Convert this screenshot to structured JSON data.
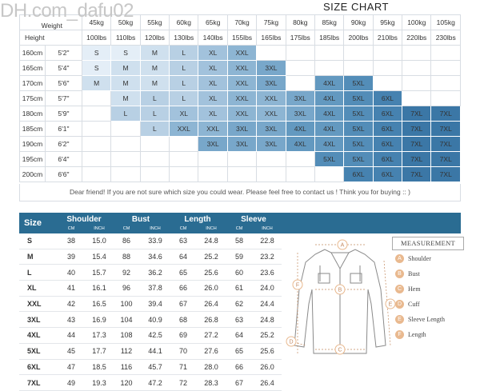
{
  "watermark": "DH.com_dafu02",
  "size_chart": {
    "title": "SIZE CHART",
    "weight_label": "Weight",
    "height_label": "Height",
    "weights_kg": [
      "45kg",
      "50kg",
      "55kg",
      "60kg",
      "65kg",
      "70kg",
      "75kg",
      "80kg",
      "85kg",
      "90kg",
      "95kg",
      "100kg",
      "105kg"
    ],
    "weights_lbs": [
      "100lbs",
      "110lbs",
      "120lbs",
      "130lbs",
      "140lbs",
      "155lbs",
      "165lbs",
      "175lbs",
      "185lbs",
      "200lbs",
      "210lbs",
      "220lbs",
      "230lbs"
    ],
    "rows": [
      {
        "cm": "160cm",
        "ft": "5'2\"",
        "cells": [
          "S",
          "S",
          "M",
          "L",
          "XL",
          "XXL",
          "",
          "",
          "",
          "",
          "",
          "",
          ""
        ]
      },
      {
        "cm": "165cm",
        "ft": "5'4\"",
        "cells": [
          "S",
          "M",
          "M",
          "L",
          "XL",
          "XXL",
          "3XL",
          "",
          "",
          "",
          "",
          "",
          ""
        ]
      },
      {
        "cm": "170cm",
        "ft": "5'6\"",
        "cells": [
          "M",
          "M",
          "M",
          "L",
          "XL",
          "XXL",
          "3XL",
          "",
          "4XL",
          "5XL",
          "",
          "",
          ""
        ]
      },
      {
        "cm": "175cm",
        "ft": "5'7\"",
        "cells": [
          "",
          "M",
          "L",
          "L",
          "XL",
          "XXL",
          "XXL",
          "3XL",
          "4XL",
          "5XL",
          "6XL",
          "",
          ""
        ]
      },
      {
        "cm": "180cm",
        "ft": "5'9\"",
        "cells": [
          "",
          "L",
          "L",
          "XL",
          "XL",
          "XXL",
          "XXL",
          "3XL",
          "4XL",
          "5XL",
          "6XL",
          "7XL",
          "7XL"
        ]
      },
      {
        "cm": "185cm",
        "ft": "6'1\"",
        "cells": [
          "",
          "",
          "L",
          "XXL",
          "XXL",
          "3XL",
          "3XL",
          "4XL",
          "4XL",
          "5XL",
          "6XL",
          "7XL",
          "7XL"
        ]
      },
      {
        "cm": "190cm",
        "ft": "6'2\"",
        "cells": [
          "",
          "",
          "",
          "",
          "3XL",
          "3XL",
          "3XL",
          "4XL",
          "4XL",
          "5XL",
          "6XL",
          "7XL",
          "7XL"
        ]
      },
      {
        "cm": "195cm",
        "ft": "6'4\"",
        "cells": [
          "",
          "",
          "",
          "",
          "",
          "",
          "",
          "",
          "5XL",
          "5XL",
          "6XL",
          "7XL",
          "7XL"
        ]
      },
      {
        "cm": "200cm",
        "ft": "6'6\"",
        "cells": [
          "",
          "",
          "",
          "",
          "",
          "",
          "",
          "",
          "",
          "6XL",
          "6XL",
          "7XL",
          "7XL"
        ]
      }
    ],
    "note": "Dear friend! If you are not sure which size you could wear. Please feel free to contact us ! Think you for buying :: )"
  },
  "cell_colors": {
    "S": "#e4eef7",
    "M": "#cfe0ee",
    "L": "#b8d0e4",
    "XL": "#a2c2dc",
    "XXL": "#8db5d3",
    "3XL": "#78a7ca",
    "4XL": "#6399c0",
    "5XL": "#538db8",
    "6XL": "#4682b0",
    "7XL": "#3b77a6"
  },
  "measurement_table": {
    "headers": {
      "size": "Size",
      "shoulder": "Shoulder",
      "bust": "Bust",
      "length": "Length",
      "sleeve": "Sleeve"
    },
    "units": [
      "CM",
      "INCH",
      "CM",
      "INCH",
      "CM",
      "INCH",
      "CM",
      "INCH"
    ],
    "rows": [
      {
        "size": "S",
        "values": [
          "38",
          "15.0",
          "86",
          "33.9",
          "63",
          "24.8",
          "58",
          "22.8"
        ]
      },
      {
        "size": "M",
        "values": [
          "39",
          "15.4",
          "88",
          "34.6",
          "64",
          "25.2",
          "59",
          "23.2"
        ]
      },
      {
        "size": "L",
        "values": [
          "40",
          "15.7",
          "92",
          "36.2",
          "65",
          "25.6",
          "60",
          "23.6"
        ]
      },
      {
        "size": "XL",
        "values": [
          "41",
          "16.1",
          "96",
          "37.8",
          "66",
          "26.0",
          "61",
          "24.0"
        ]
      },
      {
        "size": "XXL",
        "values": [
          "42",
          "16.5",
          "100",
          "39.4",
          "67",
          "26.4",
          "62",
          "24.4"
        ]
      },
      {
        "size": "3XL",
        "values": [
          "43",
          "16.9",
          "104",
          "40.9",
          "68",
          "26.8",
          "63",
          "24.8"
        ]
      },
      {
        "size": "4XL",
        "values": [
          "44",
          "17.3",
          "108",
          "42.5",
          "69",
          "27.2",
          "64",
          "25.2"
        ]
      },
      {
        "size": "5XL",
        "values": [
          "45",
          "17.7",
          "112",
          "44.1",
          "70",
          "27.6",
          "65",
          "25.6"
        ]
      },
      {
        "size": "6XL",
        "values": [
          "47",
          "18.5",
          "116",
          "45.7",
          "71",
          "28.0",
          "66",
          "26.0"
        ]
      },
      {
        "size": "7XL",
        "values": [
          "49",
          "19.3",
          "120",
          "47.2",
          "72",
          "28.3",
          "67",
          "26.4"
        ]
      }
    ]
  },
  "measurement_legend": {
    "title": "MEASUREMENT",
    "items": [
      {
        "badge": "A",
        "label": "Shoulder"
      },
      {
        "badge": "B",
        "label": "Bust"
      },
      {
        "badge": "C",
        "label": "Hem"
      },
      {
        "badge": "D",
        "label": "Cuff"
      },
      {
        "badge": "E",
        "label": "Sleeve Length"
      },
      {
        "badge": "F",
        "label": "Length"
      }
    ]
  },
  "diagram_badges": [
    "A",
    "B",
    "C",
    "D",
    "E",
    "F"
  ],
  "colors": {
    "header_blue": "#2a6c92",
    "badge": "#e9b98f",
    "border": "#d8dde3"
  }
}
